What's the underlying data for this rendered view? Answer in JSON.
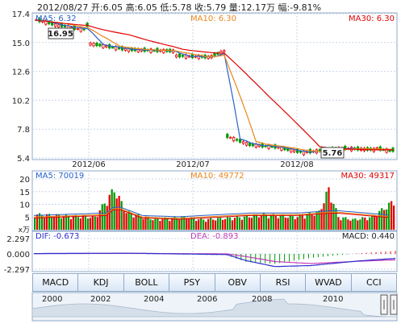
{
  "header": {
    "date": "2012/08/27",
    "open_label": "开:",
    "open": "6.05",
    "high_label": "高:",
    "high": "6.05",
    "low_label": "低:",
    "low": "5.78",
    "close_label": "收:",
    "close": "5.79",
    "volume_label": "量:",
    "volume": "12.17万",
    "change_label": "幅:",
    "change": "-9.81%"
  },
  "colors": {
    "up": "#e60000",
    "down": "#009900",
    "ma5": "#2a62c9",
    "ma10": "#e8871c",
    "ma30": "#e10000",
    "macd_dif": "#2f2fd0",
    "macd_dea": "#c23ab8",
    "grid": "#c9d7e8",
    "border": "#8fa9c9"
  },
  "tabs": [
    "MACD",
    "KDJ",
    "BOLL",
    "PSY",
    "OBV",
    "RSI",
    "WVAD",
    "CCI"
  ],
  "active_tab": "MACD",
  "chart_data": [
    {
      "type": "candlestick",
      "name": "price",
      "ylim": [
        5.4,
        17.4
      ],
      "yticks": [
        "17.4",
        "15.0",
        "12.6",
        "10.2",
        "7.8",
        "5.4"
      ],
      "xticks": [
        "2012/06",
        "2012/07",
        "2012/08"
      ],
      "grid": true,
      "legend": {
        "ma5": "MA5: 6.32",
        "ma10": "MA10: 6.30",
        "ma30": "MA30: 6.30"
      },
      "annotations": {
        "high": "16.95",
        "low": "5.76"
      },
      "phases": [
        {
          "n": 8,
          "o": 16.9,
          "c": 16.4
        },
        {
          "n": 7,
          "o": 16.4,
          "c": 16.1
        },
        {
          "n": 2,
          "o": 16.1,
          "c": 16.45
        },
        {
          "n": 13,
          "o": 14.9,
          "c": 14.4
        },
        {
          "n": 14,
          "o": 14.4,
          "c": 14.3
        },
        {
          "n": 11,
          "o": 13.9,
          "c": 13.8
        },
        {
          "n": 5,
          "o": 13.85,
          "c": 14.3
        },
        {
          "n": 7,
          "o": 7.2,
          "c": 6.6
        },
        {
          "n": 10,
          "o": 6.5,
          "c": 6.3
        },
        {
          "n": 8,
          "o": 6.2,
          "c": 5.85
        },
        {
          "n": 12,
          "o": 5.9,
          "c": 6.2
        },
        {
          "n": 10,
          "o": 6.2,
          "c": 6.1
        },
        {
          "n": 5,
          "o": 6.2,
          "c": 6.0
        },
        {
          "n": 1,
          "o": 6.05,
          "c": 5.79
        }
      ]
    },
    {
      "type": "bar",
      "name": "volume",
      "ylim": [
        0,
        20
      ],
      "yticks": [
        "20",
        "15",
        "10",
        "5"
      ],
      "unit": "x万",
      "legend": {
        "ma5": "MA5: 70019",
        "ma10": "MA10: 49772",
        "ma30": "MA30: 49317"
      },
      "profile": [
        [
          0,
          6
        ],
        [
          25,
          5
        ],
        [
          33,
          16
        ],
        [
          38,
          7
        ],
        [
          50,
          4
        ],
        [
          60,
          5
        ],
        [
          70,
          4
        ],
        [
          87,
          5
        ],
        [
          95,
          6
        ],
        [
          108,
          5
        ],
        [
          118,
          7
        ],
        [
          122,
          16
        ],
        [
          126,
          5
        ],
        [
          132,
          4
        ],
        [
          140,
          5
        ],
        [
          150,
          12
        ]
      ],
      "ma_levels": [
        [
          0,
          5
        ],
        [
          30,
          6
        ],
        [
          34,
          9
        ],
        [
          45,
          5
        ],
        [
          60,
          4.5
        ],
        [
          90,
          6
        ],
        [
          110,
          6
        ],
        [
          125,
          7
        ],
        [
          150,
          5
        ]
      ]
    },
    {
      "type": "bar",
      "name": "macd",
      "ylim": [
        -2.297,
        2.297
      ],
      "yticks": [
        "2.297",
        "0.000",
        "-2.297"
      ],
      "legend": {
        "dif": "DIF: -0.673",
        "dea": "DEA: -0.893",
        "macd": "MACD: 0.440"
      },
      "dif": [
        [
          0,
          0.05
        ],
        [
          40,
          0.1
        ],
        [
          80,
          -0.1
        ],
        [
          88,
          -1.0
        ],
        [
          100,
          -1.9
        ],
        [
          115,
          -1.75
        ],
        [
          135,
          -1.05
        ],
        [
          150,
          -0.67
        ]
      ],
      "dea": [
        [
          0,
          0.05
        ],
        [
          40,
          0.08
        ],
        [
          80,
          0.0
        ],
        [
          88,
          -0.4
        ],
        [
          100,
          -1.15
        ],
        [
          115,
          -1.45
        ],
        [
          135,
          -1.1
        ],
        [
          150,
          -0.89
        ]
      ]
    }
  ],
  "navigator": {
    "years": [
      "2000",
      "2002",
      "2004",
      "2006",
      "2008",
      "2010"
    ]
  }
}
